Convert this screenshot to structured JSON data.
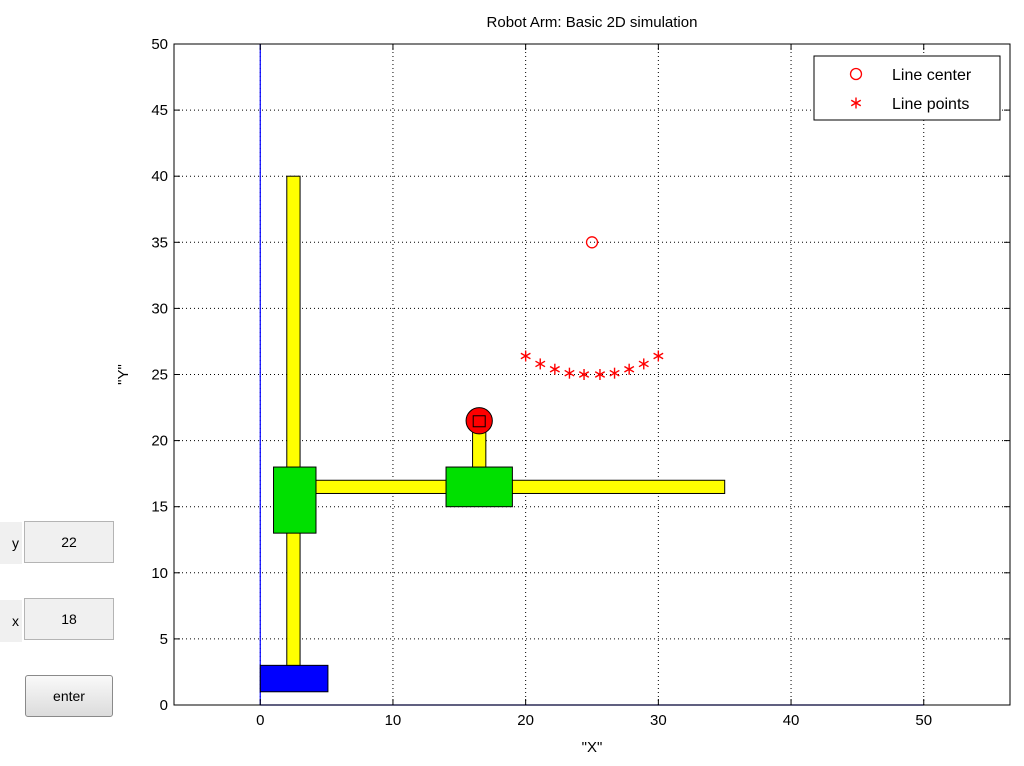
{
  "controls": {
    "y_label": "y",
    "y_value": "22",
    "x_label": "x",
    "x_value": "18",
    "enter_label": "enter"
  },
  "chart_data": {
    "type": "scatter",
    "title": "Robot Arm: Basic 2D simulation",
    "xlabel": "\"X\"",
    "ylabel": "\"Y\"",
    "xlim": [
      -6.5,
      56.5
    ],
    "ylim": [
      0,
      50
    ],
    "xticks": [
      0,
      10,
      20,
      30,
      40,
      50
    ],
    "yticks": [
      0,
      5,
      10,
      15,
      20,
      25,
      30,
      35,
      40,
      45,
      50
    ],
    "grid": true,
    "legend_position": "top-right",
    "series": [
      {
        "name": "Line center",
        "marker": "circle",
        "color": "#ff0000",
        "x": [
          25
        ],
        "y": [
          35
        ]
      },
      {
        "name": "Line points",
        "marker": "asterisk",
        "color": "#ff0000",
        "x": [
          20,
          21.1,
          22.2,
          23.3,
          24.4,
          25.6,
          26.7,
          27.8,
          28.9,
          30
        ],
        "y": [
          26.4,
          25.8,
          25.4,
          25.1,
          25.0,
          25.0,
          25.1,
          25.4,
          25.8,
          26.4
        ]
      }
    ],
    "robot_shapes": [
      {
        "name": "base",
        "color": "#0000ff",
        "x": [
          0,
          5.1
        ],
        "y": [
          1,
          3
        ]
      },
      {
        "name": "vertical-arm",
        "color": "#ffff00",
        "x": [
          2,
          3
        ],
        "y": [
          3,
          40
        ]
      },
      {
        "name": "horizontal-arm",
        "color": "#ffff00",
        "x": [
          4.2,
          35
        ],
        "y": [
          16,
          17
        ]
      },
      {
        "name": "joint-shoulder",
        "color": "#00e000",
        "x": [
          1,
          4.2
        ],
        "y": [
          13,
          18
        ]
      },
      {
        "name": "joint-elbow",
        "color": "#00e000",
        "x": [
          14,
          19
        ],
        "y": [
          15,
          18
        ]
      },
      {
        "name": "gripper-rod",
        "color": "#ffff00",
        "x": [
          16,
          17
        ],
        "y": [
          18,
          21
        ]
      },
      {
        "name": "end-effector",
        "color": "#ff0000",
        "cx": 16.5,
        "cy": 21.5,
        "r": 0.9
      }
    ],
    "axis_lines": [
      {
        "name": "x-zero-line",
        "color": "#0000ff",
        "x": [
          0,
          50
        ],
        "y": [
          0,
          0
        ]
      },
      {
        "name": "y-zero-line",
        "color": "#0000ff",
        "x": [
          0,
          0
        ],
        "y": [
          0,
          50
        ]
      }
    ]
  }
}
